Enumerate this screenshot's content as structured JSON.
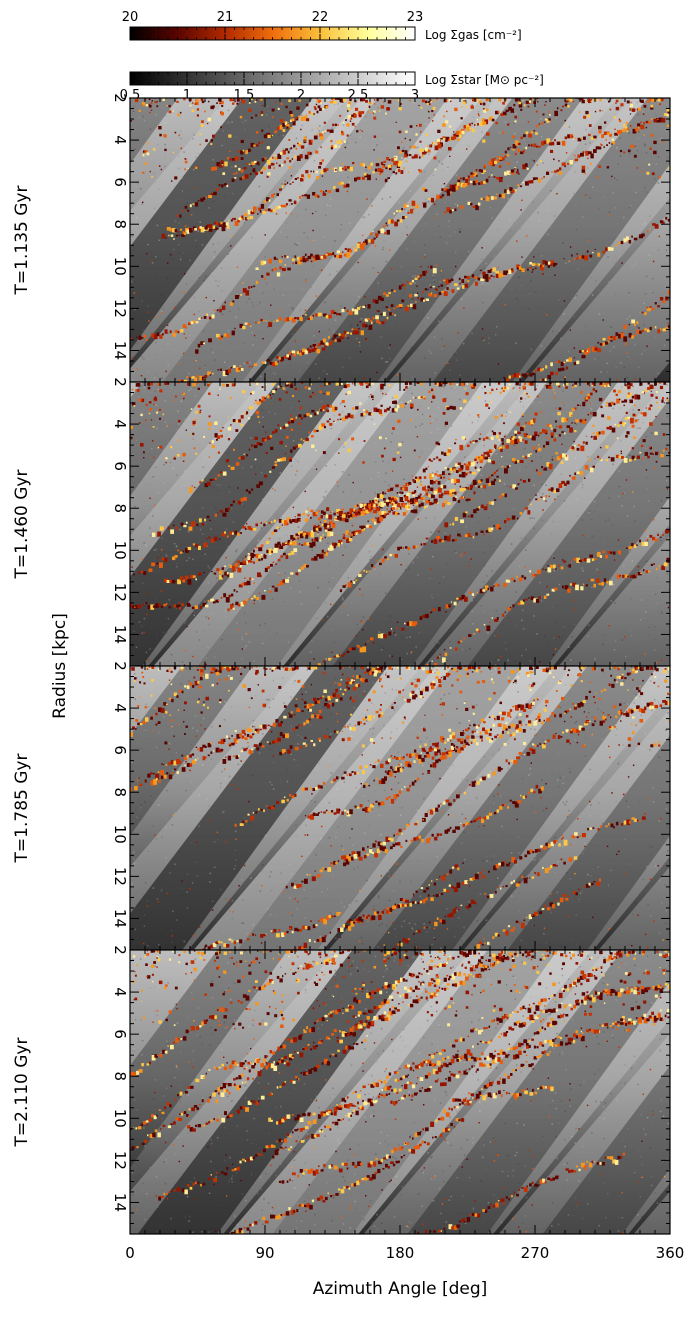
{
  "chart_data": {
    "type": "heatmap",
    "figure": "stacked azimuth-radius maps",
    "xlabel": "Azimuth Angle [deg]",
    "ylabel": "Radius [kpc]",
    "xlim": [
      0,
      360
    ],
    "ylim": [
      2,
      15.5
    ],
    "y_inverted": true,
    "x_ticks": [
      0,
      90,
      180,
      270,
      360
    ],
    "y_ticks": [
      2,
      4,
      6,
      8,
      10,
      12,
      14
    ],
    "colorbars": [
      {
        "name": "gas",
        "label": "Log Σgas [cm⁻²]",
        "colormap": "heat",
        "range": [
          20,
          23
        ],
        "ticks": [
          20,
          21,
          22,
          23
        ],
        "tick_labels": [
          "20",
          "21",
          "22",
          "23"
        ],
        "colors": [
          "#000000",
          "#5a0500",
          "#b02a00",
          "#ee6d0c",
          "#fbbf3a",
          "#ffff9a",
          "#ffffff"
        ]
      },
      {
        "name": "star",
        "label": "Log Σstar [M⊙ pc⁻²]",
        "colormap": "gray",
        "range": [
          0.5,
          3
        ],
        "ticks": [
          0.5,
          1,
          1.5,
          2,
          2.5,
          3
        ],
        "tick_labels": [
          "0.5",
          "1",
          "1.5",
          "2",
          "2.5",
          "3"
        ],
        "colors": [
          "#000000",
          "#ffffff"
        ]
      }
    ],
    "panels": [
      {
        "label": "T=1.135 Gyr",
        "time_gyr": 1.135,
        "seed": 11,
        "phase": 0
      },
      {
        "label": "T=1.460 Gyr",
        "time_gyr": 1.46,
        "seed": 23,
        "phase": 35
      },
      {
        "label": "T=1.785 Gyr",
        "time_gyr": 1.785,
        "seed": 37,
        "phase": 75
      },
      {
        "label": "T=2.110 Gyr",
        "time_gyr": 2.11,
        "seed": 53,
        "phase": 110
      }
    ]
  }
}
